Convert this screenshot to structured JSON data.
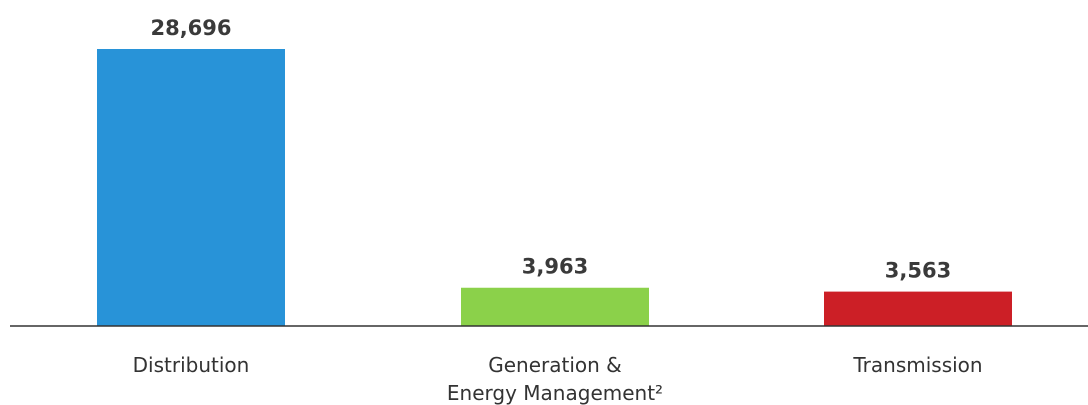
{
  "chart_data": {
    "type": "bar",
    "categories": [
      "Distribution",
      "Generation & Energy Management²",
      "Transmission"
    ],
    "category_lines": [
      [
        "Distribution"
      ],
      [
        "Generation &",
        "Energy Management²"
      ],
      [
        "Transmission"
      ]
    ],
    "values": [
      28696,
      3963,
      3563
    ],
    "value_labels": [
      "28,696",
      "3,963",
      "3,563"
    ],
    "colors": [
      "#2893d8",
      "#8bd14a",
      "#cc1f26"
    ],
    "title": "",
    "xlabel": "",
    "ylabel": "",
    "ylim": [
      0,
      28696
    ],
    "grid": false,
    "legend": "none"
  }
}
